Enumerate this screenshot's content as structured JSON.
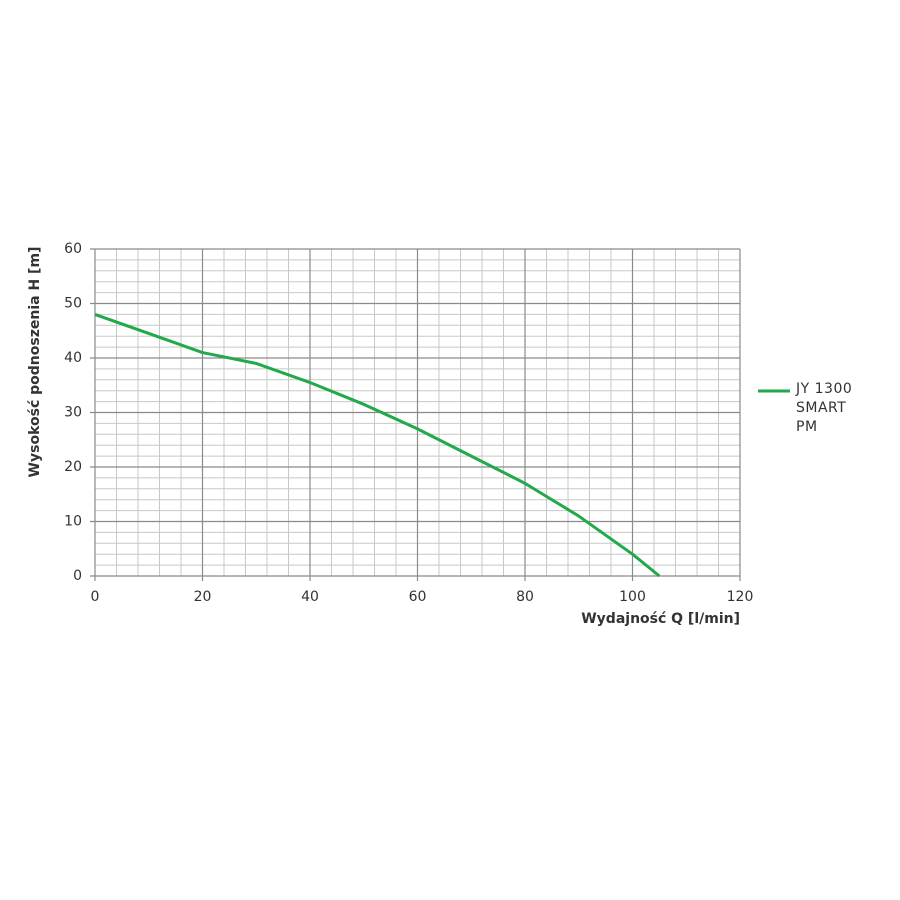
{
  "chart_data": {
    "type": "line",
    "x_label": "Wydajność Q [l/min]",
    "y_label": "Wysokość podnoszenia H [m]",
    "x": [
      0,
      10,
      20,
      30,
      40,
      50,
      60,
      70,
      80,
      90,
      100,
      105
    ],
    "series": [
      {
        "name": "JY 1300 SMART PM",
        "color": "#22a94a",
        "values": [
          48,
          44.5,
          41,
          39,
          35.5,
          31.5,
          27,
          22,
          17,
          11,
          4,
          0
        ]
      }
    ],
    "xlim": [
      0,
      120
    ],
    "xticks": [
      0,
      20,
      40,
      60,
      80,
      100,
      120
    ],
    "ylim": [
      0,
      60
    ],
    "yticks": [
      0,
      10,
      20,
      30,
      40,
      50,
      60
    ],
    "grid": true,
    "legend": "right"
  }
}
